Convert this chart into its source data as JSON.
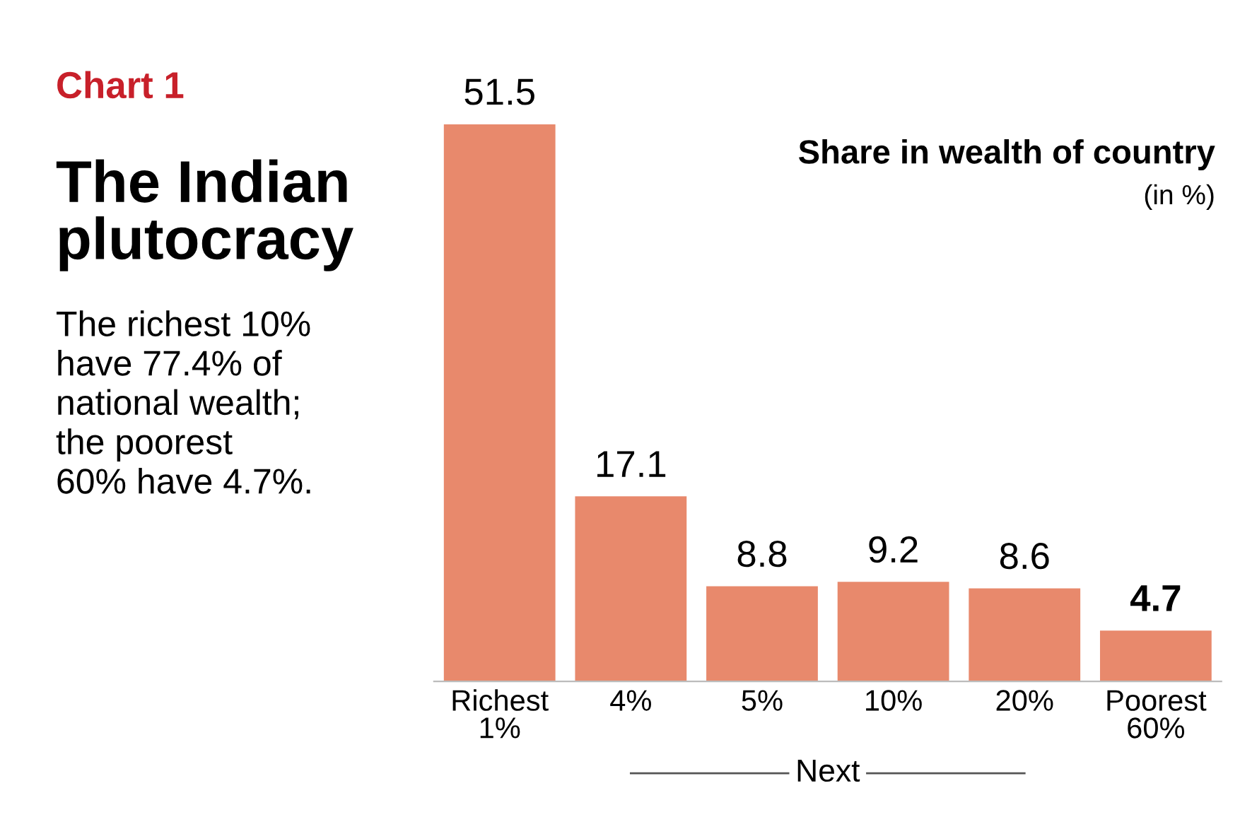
{
  "chart_data": {
    "type": "bar",
    "title": "The Indian plutocracy",
    "subtitle": "The richest 10%\nhave 77.4% of\nnational wealth;\nthe poorest\n60% have 4.7%.",
    "ylabel": "Share in wealth of country",
    "annotations": [
      "Chart 1",
      "(in %)",
      "Next"
    ],
    "categories": [
      "Richest\n1%",
      "4%",
      "5%",
      "10%",
      "20%",
      "Poorest\n60%"
    ],
    "values": [
      51.5,
      17.1,
      8.8,
      9.2,
      8.6,
      4.7
    ],
    "color": "#e8896c",
    "data_labels": true
  }
}
